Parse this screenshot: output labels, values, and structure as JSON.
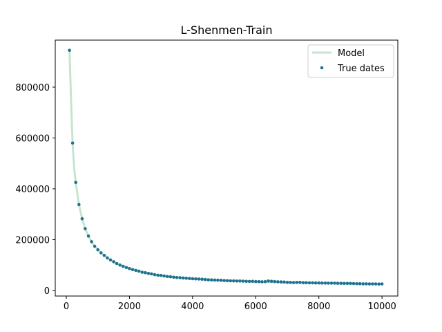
{
  "chart_data": {
    "type": "scatter",
    "title": "L-Shenmen-Train",
    "xlabel": "",
    "ylabel": "",
    "xlim": [
      -350,
      10500
    ],
    "ylim": [
      -22000,
      985000
    ],
    "xticks": [
      0,
      2000,
      4000,
      6000,
      8000,
      10000
    ],
    "yticks": [
      0,
      200000,
      400000,
      600000,
      800000
    ],
    "grid": false,
    "legend": {
      "position": "top-right",
      "entries": [
        "Model",
        "True dates"
      ]
    },
    "colors": {
      "model": "#c7e4cf",
      "points": "#1d7291"
    },
    "series": [
      {
        "name": "Model",
        "kind": "line",
        "x": [
          100,
          150,
          200,
          250,
          300,
          350,
          400,
          500,
          600,
          700,
          800,
          900,
          1000,
          1200,
          1400,
          1600,
          1800,
          2000,
          2400,
          2800,
          3200,
          3600,
          4000,
          4500,
          5000,
          5500,
          6000,
          6500,
          7000,
          7500,
          8000,
          8500,
          9000,
          9500,
          10000
        ],
        "y": [
          945000,
          750000,
          580000,
          480000,
          425000,
          380000,
          338000,
          282000,
          243000,
          214000,
          192000,
          174000,
          160000,
          138000,
          120000,
          106000,
          95000,
          86000,
          72000,
          62000,
          55000,
          50000,
          46000,
          42000,
          39000,
          37000,
          35000,
          33500,
          32000,
          30500,
          29500,
          28500,
          27500,
          26500,
          25500
        ]
      },
      {
        "name": "True dates",
        "kind": "scatter",
        "x": [
          100,
          200,
          300,
          400,
          500,
          600,
          700,
          800,
          900,
          1000,
          1100,
          1200,
          1300,
          1400,
          1500,
          1600,
          1700,
          1800,
          1900,
          2000,
          2100,
          2200,
          2300,
          2400,
          2500,
          2600,
          2700,
          2800,
          2900,
          3000,
          3100,
          3200,
          3300,
          3400,
          3500,
          3600,
          3700,
          3800,
          3900,
          4000,
          4100,
          4200,
          4300,
          4400,
          4500,
          4600,
          4700,
          4800,
          4900,
          5000,
          5100,
          5200,
          5300,
          5400,
          5500,
          5600,
          5700,
          5800,
          5900,
          6000,
          6100,
          6200,
          6300,
          6400,
          6500,
          6600,
          6700,
          6800,
          6900,
          7000,
          7100,
          7200,
          7300,
          7400,
          7500,
          7600,
          7700,
          7800,
          7900,
          8000,
          8100,
          8200,
          8300,
          8400,
          8500,
          8600,
          8700,
          8800,
          8900,
          9000,
          9100,
          9200,
          9300,
          9400,
          9500,
          9600,
          9700,
          9800,
          9900,
          10000
        ],
        "y": [
          945000,
          580000,
          425000,
          338000,
          282000,
          243000,
          214000,
          192000,
          174000,
          160000,
          148000,
          138000,
          128000,
          120000,
          113000,
          106000,
          100000,
          95000,
          90000,
          86000,
          82000,
          79000,
          76000,
          72000,
          70000,
          67000,
          65000,
          62000,
          60000,
          59000,
          57000,
          55000,
          54000,
          52000,
          51000,
          50000,
          49000,
          48000,
          47000,
          46000,
          45500,
          45000,
          44000,
          43000,
          42000,
          41500,
          41000,
          40500,
          40000,
          39000,
          38500,
          38000,
          37500,
          37000,
          37000,
          36500,
          36000,
          35500,
          36000,
          35000,
          34500,
          34000,
          34500,
          37000,
          36000,
          35000,
          34000,
          33500,
          33000,
          32000,
          31500,
          31000,
          31500,
          32000,
          30500,
          30500,
          30000,
          30000,
          29500,
          29500,
          29000,
          29000,
          28500,
          28500,
          28500,
          28000,
          28000,
          27500,
          27500,
          27500,
          27000,
          26500,
          26500,
          26000,
          26000,
          25500,
          25500,
          25500,
          25000,
          25500
        ]
      }
    ]
  }
}
